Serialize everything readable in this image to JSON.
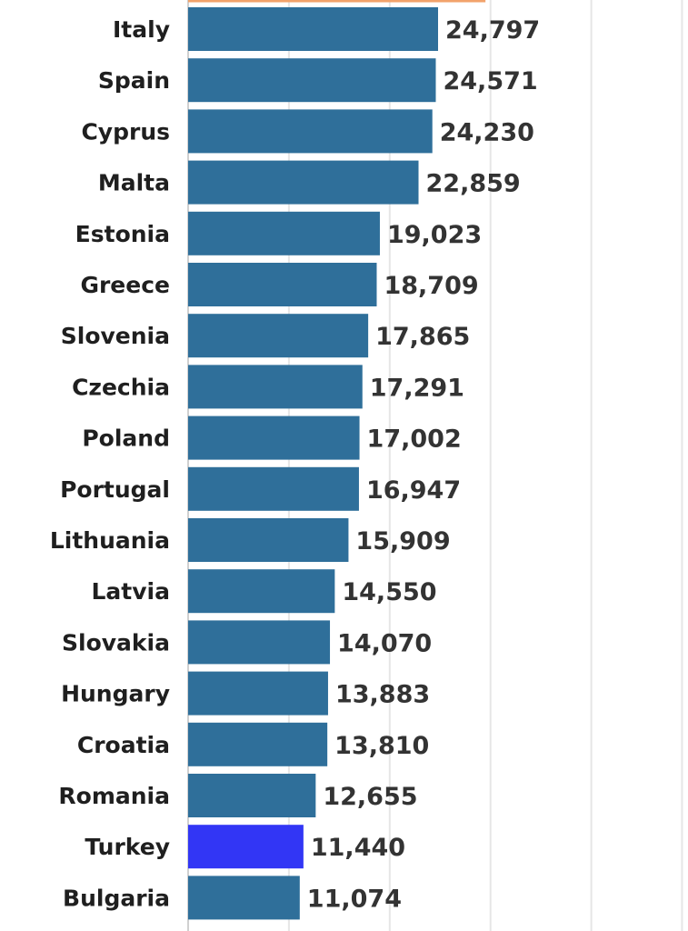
{
  "chart_data": {
    "type": "bar",
    "orientation": "horizontal",
    "categories": [
      "Italy",
      "Spain",
      "Cyprus",
      "Malta",
      "Estonia",
      "Greece",
      "Slovenia",
      "Czechia",
      "Poland",
      "Portugal",
      "Lithuania",
      "Latvia",
      "Slovakia",
      "Hungary",
      "Croatia",
      "Romania",
      "Turkey",
      "Bulgaria"
    ],
    "values": [
      24797,
      24571,
      24230,
      22859,
      19023,
      18709,
      17865,
      17291,
      17002,
      16947,
      15909,
      14550,
      14070,
      13883,
      13810,
      12655,
      11440,
      11074
    ],
    "value_labels": [
      "24,797",
      "24,571",
      "24,230",
      "22,859",
      "19,023",
      "18,709",
      "17,865",
      "17,291",
      "17,002",
      "16,947",
      "15,909",
      "14,550",
      "14,070",
      "13,883",
      "13,810",
      "12,655",
      "11,440",
      "11,074"
    ],
    "highlight": "Turkey",
    "colors": {
      "bar": "#2f6f9a",
      "highlight": "#3236f5",
      "value_text": "#333333",
      "category_text": "#1f1f1f",
      "grid": "#e6e6e6",
      "reference_line": "#f2a36b"
    },
    "xlim": [
      0,
      49000
    ],
    "grid": true,
    "title": "",
    "xlabel": "",
    "ylabel": ""
  }
}
